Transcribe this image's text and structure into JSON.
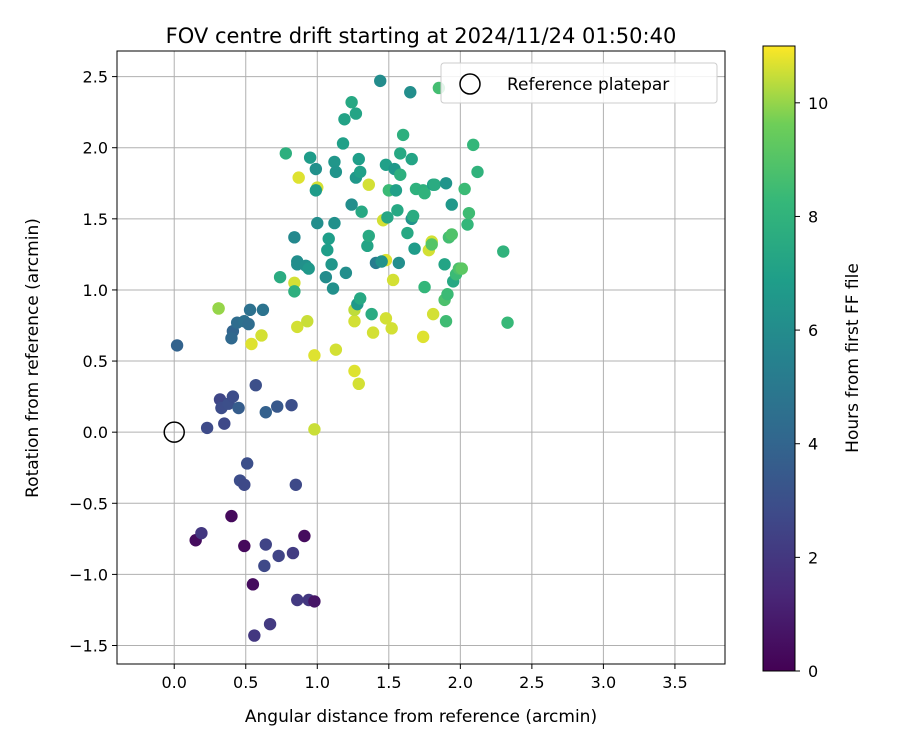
{
  "chart_data": {
    "type": "scatter",
    "title": "FOV centre drift starting at 2024/11/24 01:50:40",
    "xlabel": "Angular distance from reference (arcmin)",
    "ylabel": "Rotation from reference (arcmin)",
    "xlim": [
      -0.4,
      3.85
    ],
    "ylim": [
      -1.63,
      2.68
    ],
    "xticks": [
      0.0,
      0.5,
      1.0,
      1.5,
      2.0,
      2.5,
      3.0,
      3.5
    ],
    "xtick_labels": [
      "0.0",
      "0.5",
      "1.0",
      "1.5",
      "2.0",
      "2.5",
      "3.0",
      "3.5"
    ],
    "yticks": [
      -1.5,
      -1.0,
      -0.5,
      0.0,
      0.5,
      1.0,
      1.5,
      2.0,
      2.5
    ],
    "ytick_labels": [
      "−1.5",
      "−1.0",
      "−0.5",
      "0.0",
      "0.5",
      "1.0",
      "1.5",
      "2.0",
      "2.5"
    ],
    "grid": true,
    "legend": {
      "placement": "top-right",
      "label": "Reference platepar"
    },
    "reference_point": {
      "x": 0.0,
      "y": 0.0
    },
    "colorbar": {
      "label": "Hours from first FF file",
      "min": 0,
      "max": 11,
      "ticks": [
        0,
        2,
        4,
        6,
        8,
        10
      ],
      "tick_labels": [
        "0",
        "2",
        "4",
        "6",
        "8",
        "10"
      ],
      "colormap": "viridis"
    },
    "series": [
      {
        "points": [
          [
            0.02,
            0.61,
            3.9
          ],
          [
            0.15,
            -0.76,
            0.4
          ],
          [
            0.19,
            -0.71,
            2.0
          ],
          [
            0.23,
            0.03,
            2.8
          ],
          [
            0.32,
            0.23,
            2.6
          ],
          [
            0.33,
            0.17,
            2.9
          ],
          [
            0.35,
            0.06,
            2.7
          ],
          [
            0.38,
            0.2,
            3.0
          ],
          [
            0.41,
            0.25,
            2.9
          ],
          [
            0.45,
            0.17,
            3.6
          ],
          [
            0.41,
            0.71,
            4.0
          ],
          [
            0.4,
            0.66,
            4.2
          ],
          [
            0.44,
            0.77,
            4.4
          ],
          [
            0.49,
            0.78,
            4.6
          ],
          [
            0.52,
            0.76,
            4.4
          ],
          [
            0.53,
            0.86,
            4.6
          ],
          [
            0.62,
            0.86,
            4.7
          ],
          [
            0.57,
            0.33,
            3.0
          ],
          [
            0.64,
            0.14,
            3.8
          ],
          [
            0.72,
            0.18,
            3.4
          ],
          [
            0.82,
            0.19,
            3.0
          ],
          [
            0.4,
            -0.59,
            0.3
          ],
          [
            0.46,
            -0.34,
            2.9
          ],
          [
            0.49,
            -0.37,
            2.7
          ],
          [
            0.51,
            -0.22,
            3.0
          ],
          [
            0.49,
            -0.8,
            0.3
          ],
          [
            0.64,
            -0.79,
            2.5
          ],
          [
            0.63,
            -0.94,
            2.7
          ],
          [
            0.73,
            -0.87,
            2.5
          ],
          [
            0.83,
            -0.85,
            2.2
          ],
          [
            0.91,
            -0.73,
            0.4
          ],
          [
            0.85,
            -0.37,
            2.7
          ],
          [
            0.55,
            -1.07,
            0.4
          ],
          [
            0.56,
            -1.43,
            2.0
          ],
          [
            0.67,
            -1.35,
            2.1
          ],
          [
            0.86,
            -1.18,
            2.1
          ],
          [
            0.94,
            -1.18,
            2.0
          ],
          [
            0.98,
            -1.19,
            0.7
          ],
          [
            0.31,
            0.87,
            10.6
          ],
          [
            0.31,
            0.87,
            10.0
          ],
          [
            0.54,
            0.62,
            10.7
          ],
          [
            0.61,
            0.68,
            10.6
          ],
          [
            0.84,
            1.05,
            10.6
          ],
          [
            0.86,
            0.74,
            10.6
          ],
          [
            0.93,
            0.78,
            10.5
          ],
          [
            0.98,
            0.54,
            10.7
          ],
          [
            0.98,
            0.02,
            10.5
          ],
          [
            0.87,
            1.79,
            10.7
          ],
          [
            1.0,
            1.72,
            10.6
          ],
          [
            1.13,
            0.58,
            10.6
          ],
          [
            1.26,
            0.43,
            10.7
          ],
          [
            1.29,
            0.34,
            10.6
          ],
          [
            1.26,
            0.78,
            10.6
          ],
          [
            1.26,
            0.86,
            10.4
          ],
          [
            1.36,
            1.74,
            10.6
          ],
          [
            1.39,
            0.7,
            10.6
          ],
          [
            1.46,
            1.49,
            10.6
          ],
          [
            1.48,
            0.8,
            10.6
          ],
          [
            1.48,
            1.21,
            10.7
          ],
          [
            1.52,
            0.73,
            10.6
          ],
          [
            1.53,
            1.07,
            10.6
          ],
          [
            1.74,
            0.67,
            10.7
          ],
          [
            1.78,
            1.28,
            10.6
          ],
          [
            1.8,
            1.34,
            10.6
          ],
          [
            1.81,
            0.83,
            10.6
          ],
          [
            0.74,
            1.09,
            7.6
          ],
          [
            0.78,
            1.96,
            7.8
          ],
          [
            0.84,
            0.99,
            7.8
          ],
          [
            0.84,
            1.37,
            5.8
          ],
          [
            0.86,
            1.2,
            6.1
          ],
          [
            0.86,
            1.18,
            6.1
          ],
          [
            0.92,
            1.17,
            6.2
          ],
          [
            0.95,
            1.93,
            6.8
          ],
          [
            0.94,
            1.15,
            6.6
          ],
          [
            0.99,
            1.85,
            6.2
          ],
          [
            0.99,
            1.7,
            6.8
          ],
          [
            1.0,
            1.47,
            6.1
          ],
          [
            1.06,
            1.09,
            6.0
          ],
          [
            1.07,
            1.28,
            6.9
          ],
          [
            1.08,
            1.36,
            6.9
          ],
          [
            1.1,
            1.18,
            6.5
          ],
          [
            1.11,
            1.01,
            6.2
          ],
          [
            1.12,
            1.47,
            6.2
          ],
          [
            1.12,
            1.9,
            6.5
          ],
          [
            1.13,
            1.83,
            6.4
          ],
          [
            1.18,
            2.03,
            7.0
          ],
          [
            1.19,
            2.2,
            7.1
          ],
          [
            1.2,
            1.12,
            6.1
          ],
          [
            1.24,
            2.32,
            7.4
          ],
          [
            1.24,
            1.6,
            6.1
          ],
          [
            1.27,
            2.24,
            7.2
          ],
          [
            1.27,
            1.79,
            6.6
          ],
          [
            1.28,
            0.9,
            6.6
          ],
          [
            1.29,
            1.92,
            6.9
          ],
          [
            1.3,
            0.94,
            7.4
          ],
          [
            1.3,
            1.83,
            7.0
          ],
          [
            1.31,
            1.55,
            7.4
          ],
          [
            1.35,
            1.31,
            7.2
          ],
          [
            1.36,
            1.38,
            7.5
          ],
          [
            1.38,
            0.83,
            7.6
          ],
          [
            1.41,
            1.19,
            5.2
          ],
          [
            1.44,
            2.47,
            6.0
          ],
          [
            1.45,
            1.2,
            6.3
          ],
          [
            1.48,
            1.88,
            7.0
          ],
          [
            1.49,
            1.51,
            7.3
          ],
          [
            1.5,
            1.7,
            8.4
          ],
          [
            1.54,
            1.85,
            6.6
          ],
          [
            1.55,
            1.7,
            7.0
          ],
          [
            1.56,
            1.56,
            7.4
          ],
          [
            1.57,
            1.19,
            6.1
          ],
          [
            1.58,
            1.96,
            7.4
          ],
          [
            1.58,
            1.81,
            7.8
          ],
          [
            1.6,
            2.09,
            7.8
          ],
          [
            1.63,
            1.4,
            7.4
          ],
          [
            1.66,
            1.5,
            6.4
          ],
          [
            1.65,
            2.39,
            6.1
          ],
          [
            1.66,
            1.92,
            7.2
          ],
          [
            1.67,
            1.52,
            7.6
          ],
          [
            1.68,
            1.29,
            6.8
          ],
          [
            1.69,
            1.71,
            7.9
          ],
          [
            1.74,
            1.7,
            7.8
          ],
          [
            1.75,
            1.02,
            8.2
          ],
          [
            1.75,
            1.68,
            8.0
          ],
          [
            1.8,
            1.32,
            9.0
          ],
          [
            1.81,
            1.74,
            7.0
          ],
          [
            1.82,
            1.74,
            7.6
          ],
          [
            1.85,
            2.42,
            8.6
          ],
          [
            1.89,
            0.93,
            8.8
          ],
          [
            1.89,
            1.18,
            7.2
          ],
          [
            1.9,
            0.78,
            8.5
          ],
          [
            1.9,
            1.75,
            6.4
          ],
          [
            1.91,
            0.97,
            8.4
          ],
          [
            1.92,
            1.37,
            8.6
          ],
          [
            1.94,
            1.39,
            8.9
          ],
          [
            1.94,
            1.6,
            6.6
          ],
          [
            1.95,
            1.06,
            7.4
          ],
          [
            1.97,
            1.11,
            8.4
          ],
          [
            1.99,
            1.15,
            8.8
          ],
          [
            2.01,
            1.15,
            9.2
          ],
          [
            2.03,
            1.71,
            8.4
          ],
          [
            2.05,
            1.46,
            8.2
          ],
          [
            2.06,
            1.54,
            8.5
          ],
          [
            2.09,
            2.02,
            8.2
          ],
          [
            2.12,
            1.83,
            8.0
          ],
          [
            2.3,
            1.27,
            8.0
          ],
          [
            2.33,
            0.77,
            8.3
          ]
        ]
      }
    ]
  }
}
